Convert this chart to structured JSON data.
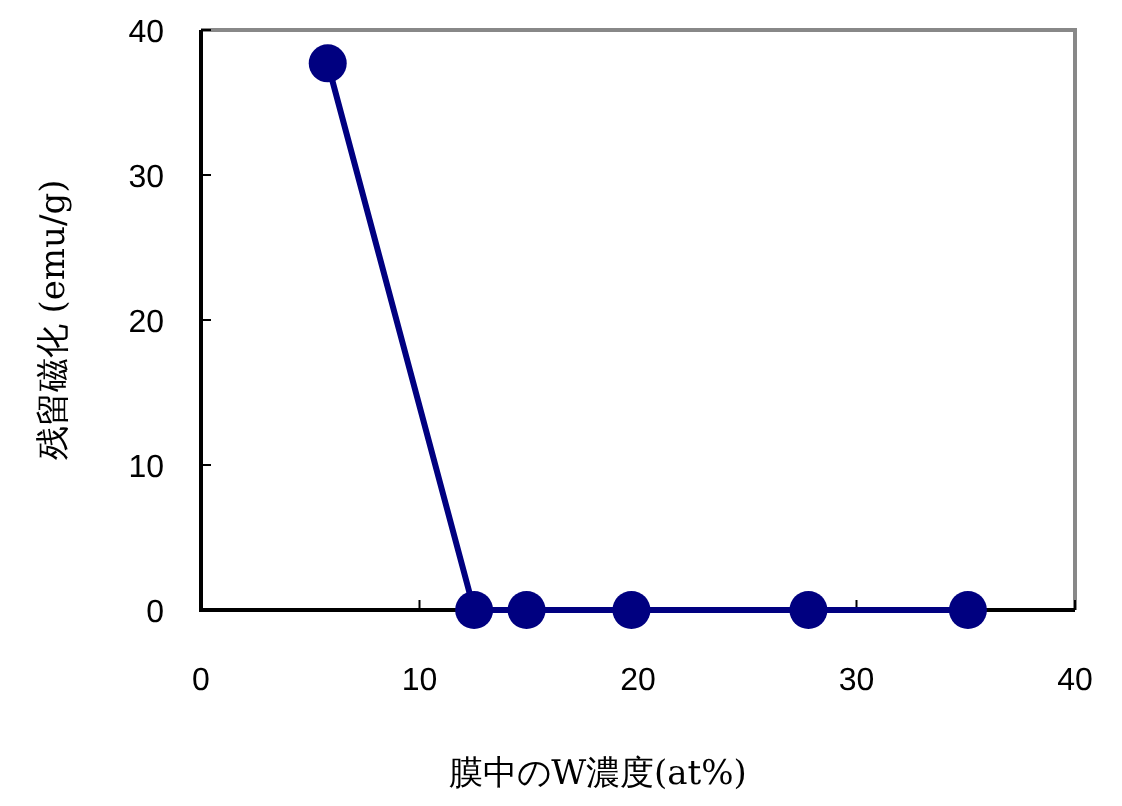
{
  "chart_data": {
    "type": "line",
    "xlabel": "膜中のW濃度(at%)",
    "ylabel": "残留磁化 (emu/g)",
    "x": [
      5.8,
      12.5,
      14.9,
      19.7,
      27.8,
      35.1
    ],
    "series": [
      {
        "color": "#000080",
        "values": [
          37.7,
          0,
          0,
          0,
          0,
          0
        ]
      }
    ],
    "xlim": [
      0,
      40
    ],
    "ylim": [
      0,
      40
    ],
    "xticks": [
      0,
      10,
      20,
      30,
      40
    ],
    "yticks": [
      0,
      10,
      20,
      30,
      40
    ],
    "marker": "circle",
    "line_style": "solid",
    "grid": false
  }
}
